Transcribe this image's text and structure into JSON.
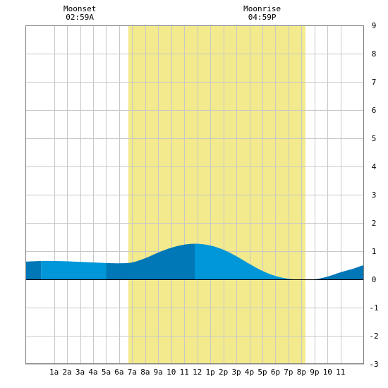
{
  "chart_data": {
    "type": "area",
    "title": "",
    "xlabel": "",
    "ylabel": "",
    "x_range_hours": [
      -1.2,
      24.8
    ],
    "ylim": [
      -3,
      9
    ],
    "grid": true,
    "x_ticks": [
      {
        "hour": 1,
        "label": "1a"
      },
      {
        "hour": 2,
        "label": "2a"
      },
      {
        "hour": 3,
        "label": "3a"
      },
      {
        "hour": 4,
        "label": "4a"
      },
      {
        "hour": 5,
        "label": "5a"
      },
      {
        "hour": 6,
        "label": "6a"
      },
      {
        "hour": 7,
        "label": "7a"
      },
      {
        "hour": 8,
        "label": "8a"
      },
      {
        "hour": 9,
        "label": "9a"
      },
      {
        "hour": 10,
        "label": "10"
      },
      {
        "hour": 11,
        "label": "11"
      },
      {
        "hour": 12,
        "label": "12"
      },
      {
        "hour": 13,
        "label": "1p"
      },
      {
        "hour": 14,
        "label": "2p"
      },
      {
        "hour": 15,
        "label": "3p"
      },
      {
        "hour": 16,
        "label": "4p"
      },
      {
        "hour": 17,
        "label": "5p"
      },
      {
        "hour": 18,
        "label": "6p"
      },
      {
        "hour": 19,
        "label": "7p"
      },
      {
        "hour": 20,
        "label": "8p"
      },
      {
        "hour": 21,
        "label": "9p"
      },
      {
        "hour": 22,
        "label": "10"
      },
      {
        "hour": 23,
        "label": "11"
      }
    ],
    "y_ticks": [
      {
        "value": 9,
        "label": "9"
      },
      {
        "value": 8,
        "label": "8"
      },
      {
        "value": 7,
        "label": "7"
      },
      {
        "value": 6,
        "label": "6"
      },
      {
        "value": 5,
        "label": "5"
      },
      {
        "value": 4,
        "label": "4"
      },
      {
        "value": 3,
        "label": "3"
      },
      {
        "value": 2,
        "label": "2"
      },
      {
        "value": 1,
        "label": "1"
      },
      {
        "value": 0,
        "label": "0"
      },
      {
        "value": -1,
        "label": "-1"
      },
      {
        "value": -2,
        "label": "-2"
      },
      {
        "value": -3,
        "label": "-3"
      }
    ],
    "daylight": {
      "start_hour": 6.7,
      "end_hour": 20.3,
      "color": "#f2ea8c"
    },
    "series": [
      {
        "x": [
          -1.2,
          0,
          1,
          2,
          3,
          4,
          5,
          6,
          7,
          8,
          9,
          10,
          11,
          12,
          13,
          14,
          15,
          16,
          17,
          18,
          19,
          20,
          21,
          22,
          23,
          24,
          24.8
        ],
        "y": [
          0.63,
          0.65,
          0.65,
          0.64,
          0.62,
          0.6,
          0.58,
          0.57,
          0.6,
          0.75,
          0.95,
          1.12,
          1.23,
          1.26,
          1.2,
          1.05,
          0.82,
          0.55,
          0.3,
          0.12,
          0.02,
          -0.02,
          0.0,
          0.1,
          0.25,
          0.38,
          0.5
        ]
      }
    ],
    "bands": [
      {
        "from": -1.2,
        "to": 0,
        "color": "#0077b6"
      },
      {
        "from": 0,
        "to": 5,
        "color": "#0097d8"
      },
      {
        "from": 5,
        "to": 11.8,
        "color": "#0077b6"
      },
      {
        "from": 11.8,
        "to": 20.3,
        "color": "#0097d8"
      },
      {
        "from": 20.3,
        "to": 24.8,
        "color": "#0077b6"
      }
    ],
    "annotations": [
      {
        "hour": 2.98,
        "label": "Moonset",
        "time": "02:59A"
      },
      {
        "hour": 16.98,
        "label": "Moonrise",
        "time": "04:59P"
      }
    ],
    "colors": {
      "grid": "#c8c8c8",
      "frame": "#808080",
      "zero_line": "#000000",
      "text": "#000000",
      "background": "#ffffff"
    }
  }
}
